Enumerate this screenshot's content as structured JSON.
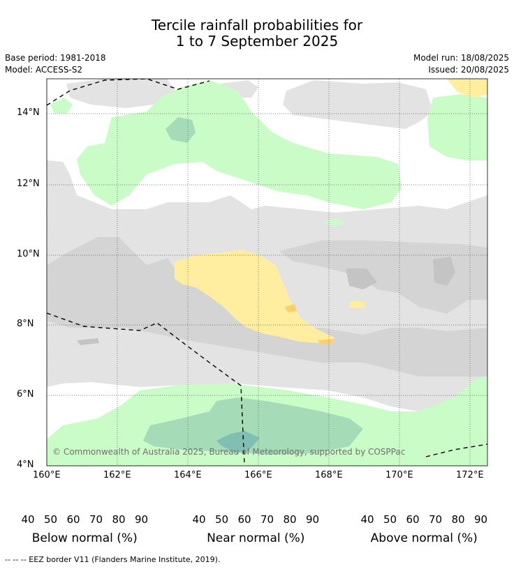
{
  "title_line1": "Tercile rainfall probabilities for",
  "title_line2": "1 to 7 September 2025",
  "base_period": "Base period: 1981-2018",
  "model": "Model: ACCESS-S2",
  "model_run": "Model run: 18/08/2025",
  "issued": "Issued: 20/08/2025",
  "copyright": "© Commonwealth of Australia 2025, Bureau of Meteorology, supported by COSPPac",
  "lat_labels": [
    "14°N",
    "12°N",
    "10°N",
    "8°N",
    "6°N",
    "4°N"
  ],
  "lon_labels": [
    "160°E",
    "162°E",
    "164°E",
    "166°E",
    "168°E",
    "170°E",
    "172°E"
  ],
  "colorbars": [
    {
      "title": "Below normal (%)",
      "ticks": [
        "40",
        "50",
        "60",
        "70",
        "80",
        "90"
      ],
      "colors": [
        "#ffeda0",
        "#fed06b",
        "#e39a4a",
        "#cf6232",
        "#b04a2a",
        "#8f3520"
      ]
    },
    {
      "title": "Near normal (%)",
      "ticks": [
        "40",
        "50",
        "60",
        "70",
        "80",
        "90"
      ],
      "colors": [
        "#e3e3e3",
        "#d4d4d4",
        "#c4c4c4",
        "#b0b0b0",
        "#9e9e9e",
        "#8a8a8a"
      ]
    },
    {
      "title": "Above normal (%)",
      "ticks": [
        "40",
        "50",
        "60",
        "70",
        "80",
        "90"
      ],
      "colors": [
        "#c9fcc6",
        "#a6dbb8",
        "#80bfb2",
        "#5c96a5",
        "#336aa0",
        "#124a88"
      ]
    }
  ],
  "footnote": "--  --  -- EEZ border V11 (Flanders Marine Institute, 2019)."
}
